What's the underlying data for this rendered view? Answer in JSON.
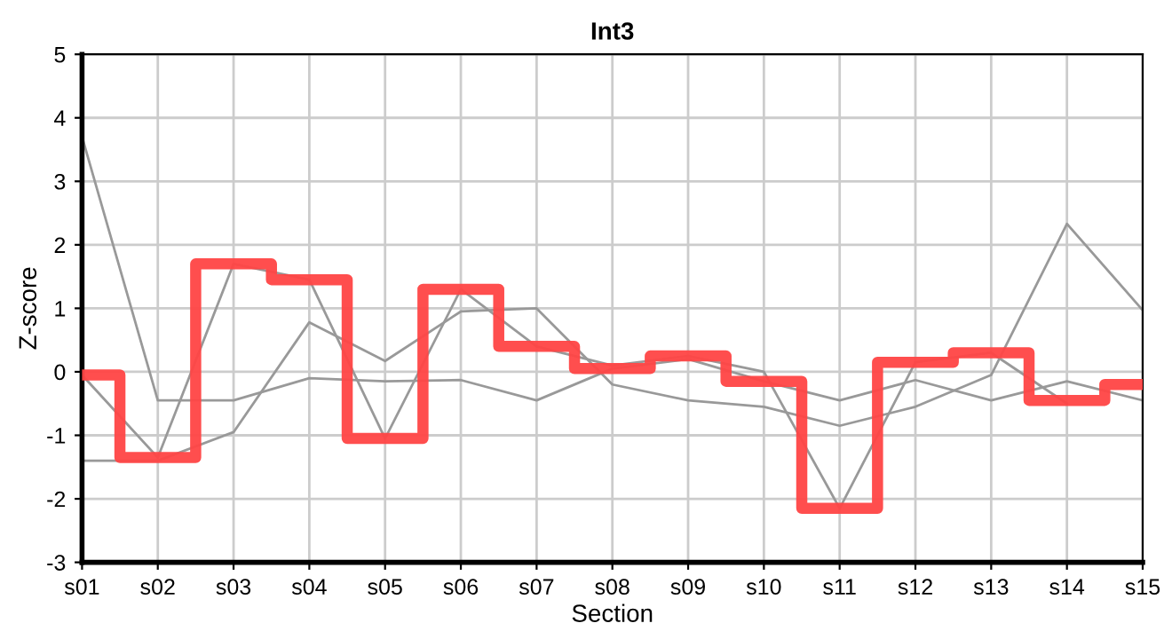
{
  "chart_data": {
    "type": "line",
    "title": "Int3",
    "xlabel": "Section",
    "ylabel": "Z-score",
    "categories": [
      "s01",
      "s02",
      "s03",
      "s04",
      "s05",
      "s06",
      "s07",
      "s08",
      "s09",
      "s10",
      "s11",
      "s12",
      "s13",
      "s14",
      "s15"
    ],
    "series": [
      {
        "color": "#999999",
        "values": [
          3.7,
          -0.45,
          -0.45,
          -0.1,
          -0.15,
          -0.13,
          -0.45,
          0.05,
          0.2,
          -0.15,
          -0.45,
          -0.13,
          -0.45,
          -0.15,
          -0.45
        ]
      },
      {
        "color": "#999999",
        "values": [
          -0.05,
          -1.35,
          1.7,
          1.45,
          -1.05,
          1.3,
          0.4,
          0.1,
          0.25,
          0.0,
          -2.15,
          0.15,
          0.3,
          -0.5,
          null
        ]
      },
      {
        "color": "#999999",
        "values": [
          -1.4,
          -1.4,
          -0.95,
          0.78,
          0.17,
          0.95,
          1.0,
          -0.2,
          -0.45,
          -0.55,
          -0.85,
          -0.55,
          -0.05,
          2.33,
          0.97
        ]
      },
      {
        "type": "step",
        "color": "#ff4444",
        "values": [
          -0.05,
          -1.35,
          1.7,
          1.45,
          -1.05,
          1.3,
          0.4,
          0.05,
          0.25,
          -0.15,
          -2.15,
          0.15,
          0.3,
          -0.45,
          -0.2
        ]
      }
    ],
    "ylim": [
      -3,
      5
    ],
    "yticks": [
      -3,
      -2,
      -1,
      0,
      1,
      2,
      3,
      4,
      5
    ],
    "grid": true,
    "marker": "none",
    "line_style": "solid"
  }
}
